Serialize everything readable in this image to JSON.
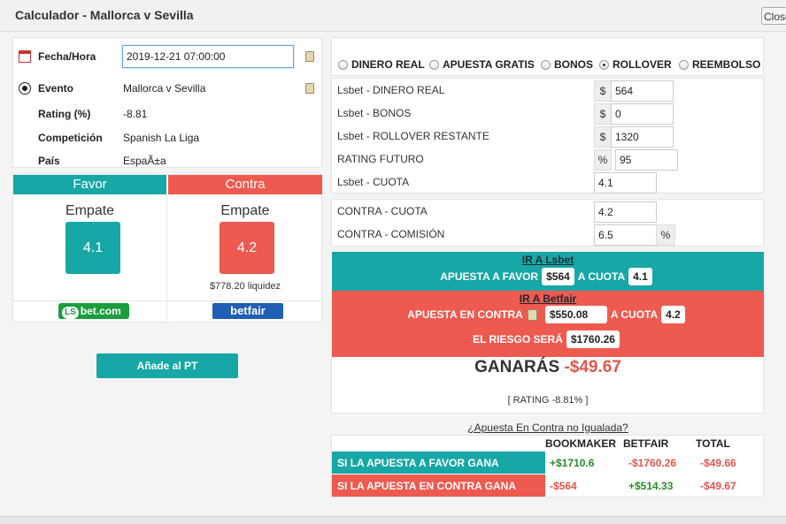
{
  "window": {
    "title": "Calculador - Mallorca v Sevilla",
    "close_label": "Close"
  },
  "info": {
    "fecha_label": "Fecha/Hora",
    "fecha_value": "2019-12-21 07:00:00",
    "evento_label": "Evento",
    "evento_value": "Mallorca v Sevilla",
    "rating_label": "Rating (%)",
    "rating_value": "-8.81",
    "competicion_label": "Competición",
    "competicion_value": "Spanish La Liga",
    "pais_label": "País",
    "pais_value": "EspaÃ±a"
  },
  "favor": {
    "header": "Favor",
    "selection": "Empate",
    "odds": "4.1",
    "bookmaker_logo": "bet.com",
    "bookmaker_logo_ls": "LS"
  },
  "contra": {
    "header": "Contra",
    "selection": "Empate",
    "odds": "4.2",
    "liquidity": "$778.20 liquidez",
    "exchange_logo": "betfair"
  },
  "add_button": "Añade al PT",
  "modes": [
    {
      "label": "DINERO REAL",
      "selected": false
    },
    {
      "label": "APUESTA GRATIS",
      "selected": false
    },
    {
      "label": "BONOS",
      "selected": false
    },
    {
      "label": "ROLLOVER",
      "selected": true
    },
    {
      "label": "REEMBOLSO",
      "selected": false
    }
  ],
  "bookie_fields": {
    "dinero_label": "Lsbet - DINERO REAL",
    "dinero_prefix": "$",
    "dinero_value": "564",
    "bonos_label": "Lsbet - BONOS",
    "bonos_prefix": "$",
    "bonos_value": "0",
    "rollover_label": "Lsbet - ROLLOVER RESTANTE",
    "rollover_prefix": "$",
    "rollover_value": "1320",
    "rating_label": "RATING FUTURO",
    "rating_prefix": "%",
    "rating_value": "95",
    "cuota_label": "Lsbet - CUOTA",
    "cuota_value": "4.1"
  },
  "contra_fields": {
    "cuota_label": "CONTRA - CUOTA",
    "cuota_value": "4.2",
    "comision_label": "CONTRA - COMISIÓN",
    "comision_value": "6.5",
    "comision_suffix": "%"
  },
  "favor_band": {
    "link": "IR A Lsbet",
    "text1": "APUESTA A FAVOR",
    "stake": "$564",
    "text2": "A CUOTA",
    "odds": "4.1"
  },
  "contra_band": {
    "link": "IR A Betfair",
    "text1": "APUESTA EN CONTRA",
    "stake": "$550.08",
    "text2": "A CUOTA",
    "odds": "4.2",
    "risk_text": "EL RIESGO SERÁ",
    "risk": "$1760.26"
  },
  "result": {
    "label": "GANARÁS",
    "value": "-$49.67",
    "rating": "[ RATING -8.81% ]"
  },
  "unmatched_link": "¿Apuesta En Contra no Igualada?",
  "summary": {
    "headers": [
      "BOOKMAKER",
      "BETFAIR",
      "TOTAL"
    ],
    "rows": [
      {
        "label": "SI LA APUESTA A FAVOR GANA",
        "bookmaker": "+$1710.6",
        "betfair": "-$1760.26",
        "total": "-$49.66"
      },
      {
        "label": "SI LA APUESTA EN CONTRA GANA",
        "bookmaker": "-$564",
        "betfair": "+$514.33",
        "total": "-$49.67"
      }
    ]
  },
  "colors": {
    "teal": "#17a7a7",
    "red": "#ee5a4f",
    "negative": "#e2554b",
    "positive": "#2a8a2a"
  }
}
